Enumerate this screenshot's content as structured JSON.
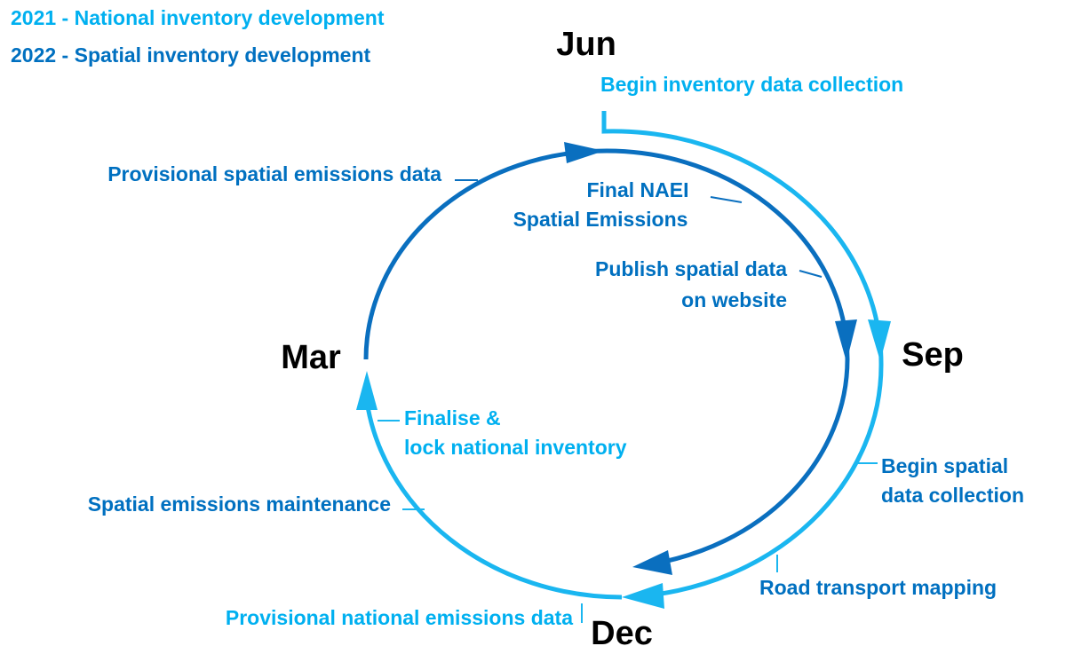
{
  "legend": [
    "2021 - National inventory development",
    "2022 - Spatial inventory development"
  ],
  "months": [
    "Jun",
    "Sep",
    "Dec",
    "Mar"
  ],
  "labels": [
    [
      "Begin inventory data collection"
    ],
    [
      "Provisional spatial emissions data"
    ],
    [
      "Final NAEI",
      "Spatial Emissions"
    ],
    [
      "Publish spatial data",
      "on website"
    ],
    [
      "Finalise &",
      "lock national inventory"
    ],
    [
      "Spatial emissions maintenance"
    ],
    [
      "Begin spatial",
      "data collection"
    ],
    [
      "Road transport mapping"
    ],
    [
      "Provisional national emissions data"
    ]
  ]
}
